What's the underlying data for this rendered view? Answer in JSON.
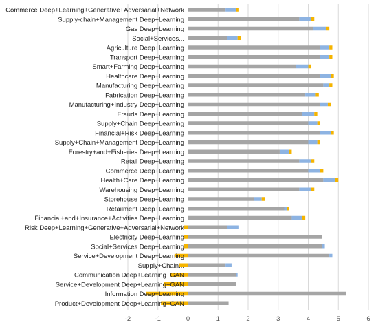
{
  "chart_data": {
    "type": "bar",
    "orientation": "horizontal",
    "stacked": true,
    "grid": true,
    "legend": "none",
    "title": "",
    "xlabel": "",
    "ylabel": "",
    "xlim": [
      -2,
      6
    ],
    "x_ticks": [
      -2,
      -1,
      0,
      1,
      2,
      3,
      4,
      5,
      6
    ],
    "x_tick_labels": [
      "-2",
      "-1",
      "0",
      "1",
      "2",
      "3",
      "4",
      "5",
      "6"
    ],
    "colors": {
      "gray": "#a5a5a5",
      "blue": "#8db3e2",
      "orange": "#f5b400"
    },
    "categories": [
      "Commerce Deep+Learning+Generative+Adversarial+Network",
      "Supply-chain+Management Deep+Learning",
      "Gas Deep+Learning",
      "Social+Services...",
      "Agriculture Deep+Learning",
      "Transport Deep+Learning",
      "Smart+Farming Deep+Learning",
      "Healthcare Deep+Learning",
      "Manufacturing Deep+Learning",
      "Fabrication Deep+Learning",
      "Manufacturing+Industry Deep+Learning",
      "Frauds Deep+Learning",
      "Supply+Chain Deep+Learning",
      "Financial+Risk Deep+Learning",
      "Supply+Chain+Management Deep+Learning",
      "Forestry+and+Fisheries Deep+Learning",
      "Retail Deep+Learning",
      "Commerce Deep+Learning",
      "Health+Care Deep+Learning",
      "Warehousing Deep+Learning",
      "Storehouse Deep+Learning",
      "Retailment Deep+Learning",
      "Financial+and+Insurance+Activities Deep+Learning",
      "Risk Deep+Learning+Generative+Adversarial+Network",
      "Electricity Deep+Learning",
      "Social+Services Deep+Learning",
      "Service+Development Deep+Learning",
      "Supply+Chain...",
      "Communication Deep+Learning+GAN",
      "Service+Development Deep+Learning+GAN",
      "Information Deep+Learning",
      "Product+Development Deep+Learning+GAN"
    ],
    "series": [
      {
        "color": "#a5a5a5",
        "values": [
          1.25,
          3.7,
          4.15,
          1.3,
          4.4,
          4.4,
          3.6,
          4.4,
          4.5,
          3.9,
          4.4,
          3.8,
          4.0,
          4.4,
          4.0,
          3.05,
          3.7,
          4.0,
          4.5,
          3.7,
          2.2,
          3.2,
          3.45,
          1.3,
          4.45,
          4.45,
          4.7,
          1.25,
          1.6,
          1.6,
          5.25,
          1.35
        ]
      },
      {
        "color": "#8db3e2",
        "values": [
          0.35,
          0.4,
          0.45,
          0.35,
          0.3,
          0.3,
          0.4,
          0.35,
          0.2,
          0.35,
          0.25,
          0.4,
          0.3,
          0.35,
          0.3,
          0.3,
          0.4,
          0.4,
          0.4,
          0.4,
          0.25,
          0.1,
          0.35,
          0.4,
          0.0,
          0.1,
          0.1,
          0.2,
          0.05,
          0.0,
          0.0,
          0.0
        ]
      },
      {
        "color": "#f5b400",
        "values": [
          0.1,
          0.1,
          0.1,
          0.1,
          0.1,
          0.1,
          0.1,
          0.1,
          0.1,
          0.1,
          0.1,
          0.1,
          0.1,
          0.1,
          0.1,
          0.1,
          0.1,
          0.1,
          0.1,
          0.1,
          0.1,
          0.05,
          0.1,
          -0.15,
          -0.15,
          -0.15,
          -0.45,
          -0.3,
          -0.6,
          -0.8,
          -1.4,
          -0.9
        ]
      }
    ]
  }
}
